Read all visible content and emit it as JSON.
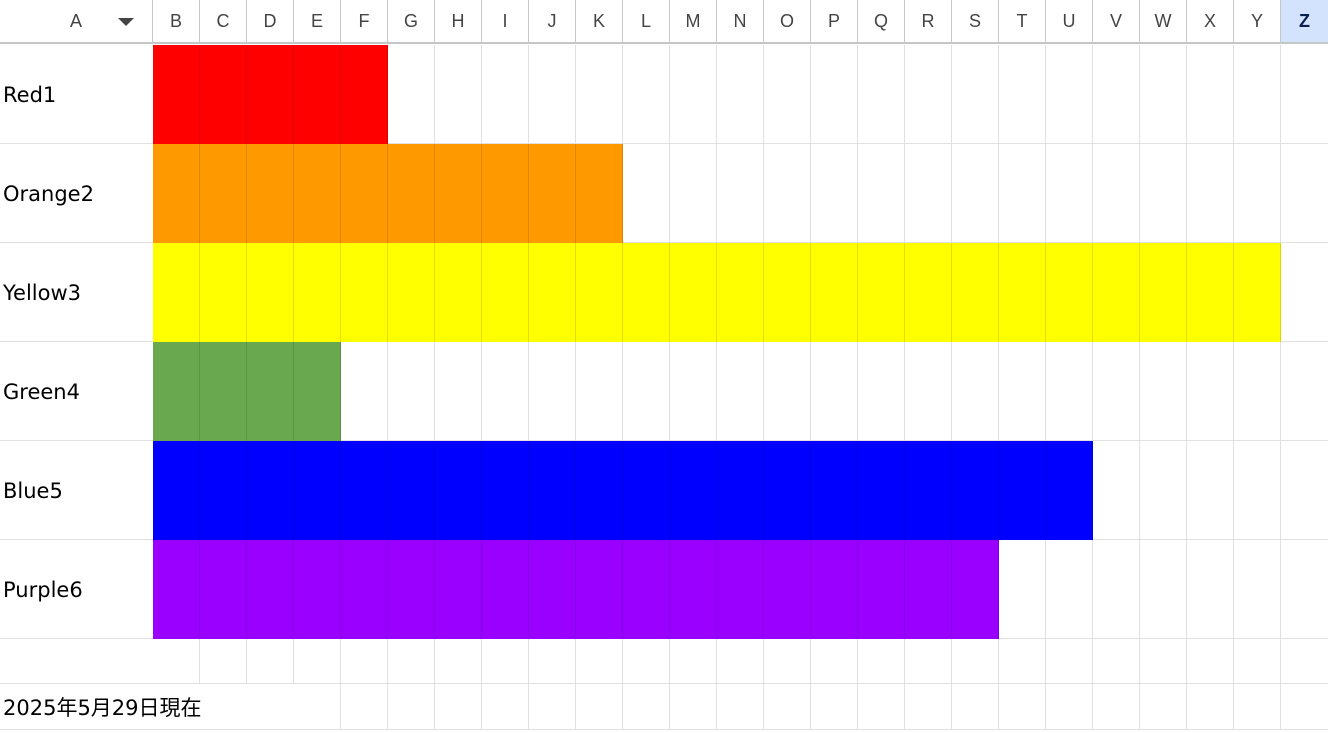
{
  "columns": [
    "A",
    "B",
    "C",
    "D",
    "E",
    "F",
    "G",
    "H",
    "I",
    "J",
    "K",
    "L",
    "M",
    "N",
    "O",
    "P",
    "Q",
    "R",
    "S",
    "T",
    "U",
    "V",
    "W",
    "X",
    "Y",
    "Z"
  ],
  "selected_column": "Z",
  "rows": [
    {
      "label": "Red1",
      "filled_columns": 5,
      "color": "#ff0000"
    },
    {
      "label": "Orange2",
      "filled_columns": 10,
      "color": "#ff9900"
    },
    {
      "label": "Yellow3",
      "filled_columns": 24,
      "color": "#ffff00"
    },
    {
      "label": "Green4",
      "filled_columns": 4,
      "color": "#6aa84f"
    },
    {
      "label": "Blue5",
      "filled_columns": 20,
      "color": "#0000ff"
    },
    {
      "label": "Purple6",
      "filled_columns": 18,
      "color": "#9900ff"
    }
  ],
  "footer_note": "2025年5月29日現在",
  "icons": {
    "column_a_menu": "triangle-down-icon"
  }
}
